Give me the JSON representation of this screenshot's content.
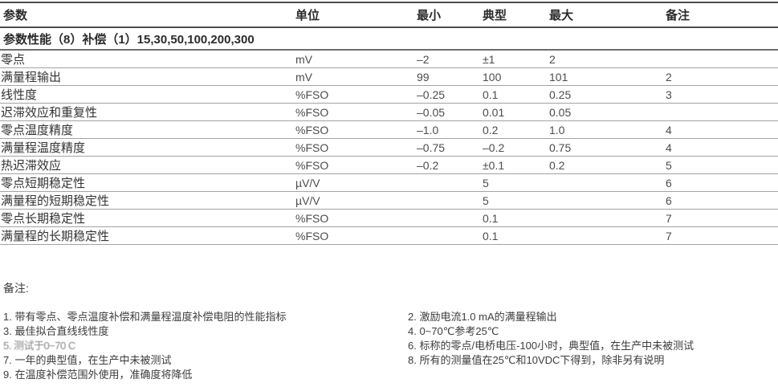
{
  "table": {
    "headers": [
      "参数",
      "单位",
      "最小",
      "典型",
      "最大",
      "备注"
    ],
    "section": "参数性能（8）补偿（1）15,30,50,100,200,300",
    "rows": [
      {
        "param": "零点",
        "unit": "mV",
        "min": "–2",
        "typ": "±1",
        "max": "2",
        "note": ""
      },
      {
        "param": "满量程输出",
        "unit": "mV",
        "min": "99",
        "typ": "100",
        "max": "101",
        "note": "2"
      },
      {
        "param": "线性度",
        "unit": "%FSO",
        "min": "–0.25",
        "typ": "0.1",
        "max": "0.25",
        "note": "3"
      },
      {
        "param": "迟滞效应和重复性",
        "unit": "%FSO",
        "min": "–0.05",
        "typ": "0.01",
        "max": "0.05",
        "note": ""
      },
      {
        "param": "零点温度精度",
        "unit": "%FSO",
        "min": "–1.0",
        "typ": "0.2",
        "max": "1.0",
        "note": "4"
      },
      {
        "param": "满量程温度精度",
        "unit": "%FSO",
        "min": "–0.75",
        "typ": "–0.2",
        "max": "0.75",
        "note": "4"
      },
      {
        "param": "热迟滞效应",
        "unit": "%FSO",
        "min": "–0.2",
        "typ": "±0.1",
        "max": "0.2",
        "note": "5"
      },
      {
        "param": "零点短期稳定性",
        "unit": "µV/V",
        "min": "",
        "typ": "5",
        "max": "",
        "note": "6"
      },
      {
        "param": "满量程的短期稳定性",
        "unit": "µV/V",
        "min": "",
        "typ": "5",
        "max": "",
        "note": "6"
      },
      {
        "param": "零点长期稳定性",
        "unit": "%FSO",
        "min": "",
        "typ": "0.1",
        "max": "",
        "note": "7"
      },
      {
        "param": "满量程的长期稳定性",
        "unit": "%FSO",
        "min": "",
        "typ": "0.1",
        "max": "",
        "note": "7"
      }
    ]
  },
  "notes": {
    "label": "备注:",
    "left": [
      "1. 带有零点、零点温度补偿和满量程温度补偿电阻的性能指标",
      "3. 最佳拟合直线线性度",
      "5. 测试于0~70 C",
      "7. 一年的典型值，在生产中未被测试",
      "9. 在温度补偿范围外使用，准确度将降低"
    ],
    "right": [
      "2. 激励电流1.0 mA的满量程输出",
      "4. 0~70℃参考25℃",
      "6. 标称的零点/电桥电压-100小时，典型值，在生产中未被测试",
      "8. 所有的测量值在25℃和10VDC下得到，除非另有说明"
    ]
  }
}
